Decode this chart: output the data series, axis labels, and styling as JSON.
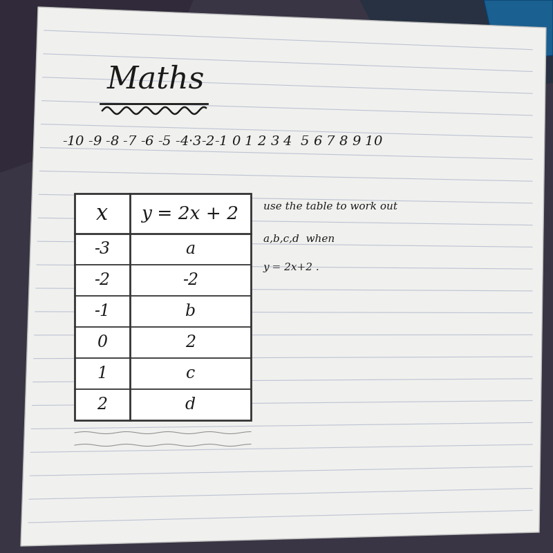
{
  "title": "Maths",
  "number_line": "-10 -9 -8 -7 -6 -5 -4 -3 -2 -1 0 1 2 3 4  5 6 7 8 9 10",
  "table_header_x": "x",
  "table_header_y": "y = 2x + 2",
  "table_rows": [
    [
      "-3",
      "a"
    ],
    [
      "-2",
      "-2"
    ],
    [
      "-1",
      "b"
    ],
    [
      "0",
      "2"
    ],
    [
      "1",
      "c"
    ],
    [
      "2",
      "d"
    ]
  ],
  "side_text_line1": "use the table to work out",
  "side_text_line2": "a,b,c,d  when",
  "side_text_line3": "y = 2x+2 .",
  "bg_top_left": "#4a3f52",
  "bg_top_right": "#2a5060",
  "bg_bottom": "#5a5060",
  "paper_color": "#f0f0ee",
  "line_color": "#9aa4c0",
  "table_border_color": "#333333",
  "ink_color": "#1a1a1a"
}
